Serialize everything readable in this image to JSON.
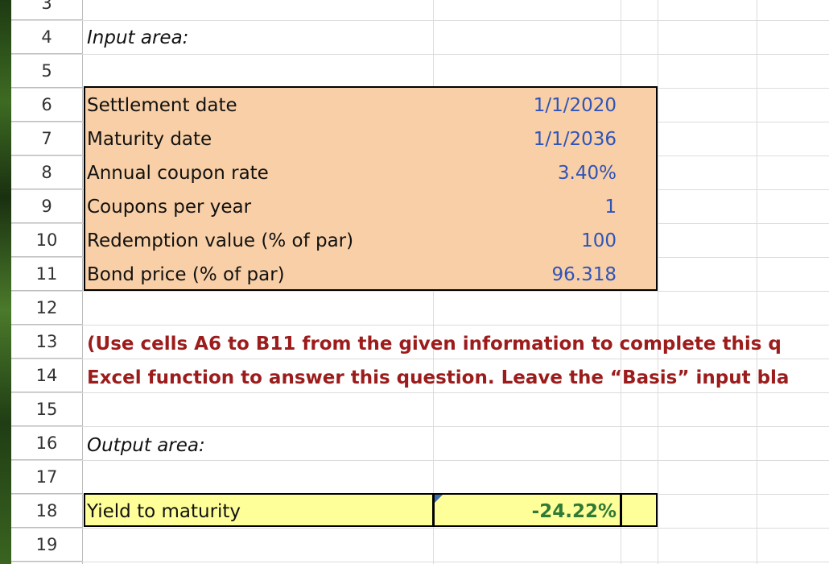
{
  "rows": [
    "3",
    "4",
    "5",
    "6",
    "7",
    "8",
    "9",
    "10",
    "11",
    "12",
    "13",
    "14",
    "15",
    "16",
    "17",
    "18",
    "19"
  ],
  "input_area_label": "Input area:",
  "inputs": [
    {
      "label": "Settlement date",
      "value": "1/1/2020"
    },
    {
      "label": "Maturity date",
      "value": "1/1/2036"
    },
    {
      "label": "Annual coupon rate",
      "value": "3.40%"
    },
    {
      "label": "Coupons per year",
      "value": "1"
    },
    {
      "label": "Redemption value (% of par)",
      "value": "100"
    },
    {
      "label": "Bond price (% of par)",
      "value": "96.318"
    }
  ],
  "notes": [
    "(Use cells A6 to B11 from the given information to complete this q",
    "Excel function to answer this question. Leave the “Basis” input bla"
  ],
  "output_area_label": "Output area:",
  "output": {
    "label": "Yield to maturity",
    "value": "-24.22%"
  },
  "colors": {
    "input_fill": "#f8cfa6",
    "output_fill": "#ffff99",
    "input_value_text": "#2f54b8",
    "note_text": "#9c1c1c",
    "output_value_text": "#2f7a35"
  }
}
